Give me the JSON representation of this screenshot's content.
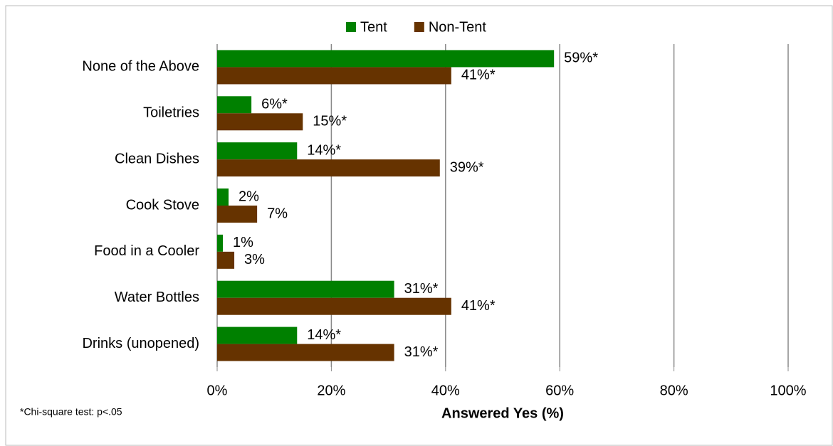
{
  "chart_data": {
    "type": "hbar",
    "categories": [
      "None of the Above",
      "Toiletries",
      "Clean Dishes",
      "Cook Stove",
      "Food in a Cooler",
      "Water Bottles",
      "Drinks (unopened)"
    ],
    "series": [
      {
        "name": "Tent",
        "color": "#008000",
        "values": [
          59,
          6,
          14,
          2,
          1,
          31,
          14
        ],
        "value_labels": [
          "59%*",
          "6%*",
          "14%*",
          "2%",
          "1%",
          "31%*",
          "14%*"
        ]
      },
      {
        "name": "Non-Tent",
        "color": "#663300",
        "values": [
          41,
          15,
          39,
          7,
          3,
          41,
          31
        ],
        "value_labels": [
          "41%*",
          "15%*",
          "39%*",
          "7%",
          "3%",
          "41%*",
          "31%*"
        ]
      }
    ],
    "xlim": [
      0,
      100
    ],
    "xticks": [
      {
        "value": 0,
        "label": "0%"
      },
      {
        "value": 20,
        "label": "20%"
      },
      {
        "value": 40,
        "label": "40%"
      },
      {
        "value": 60,
        "label": "60%"
      },
      {
        "value": 80,
        "label": "80%"
      },
      {
        "value": 100,
        "label": "100%"
      }
    ],
    "x_label": "Answered Yes (%)",
    "footnote": "*Chi-square test: p<.05",
    "grid": true,
    "legend": "top"
  }
}
